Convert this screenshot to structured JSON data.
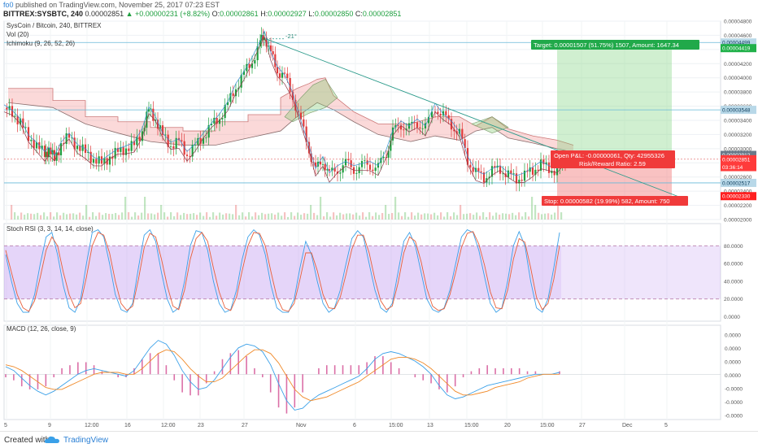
{
  "header": {
    "user": "fo0",
    "published_text": "published on TradingView.com, November 25, 2017 07:23 EST",
    "symbol": "BITTREX:SYSBTC, 240",
    "last_price": "0.00002851",
    "change": "▲ +0.00000231 (+8.82%)",
    "open_label": "O:",
    "open": "0.00002861",
    "high_label": "H:",
    "high": "0.00002927",
    "low_label": "L:",
    "low": "0.00002850",
    "close_label": "C:",
    "close": "0.00002851"
  },
  "legends": {
    "main_title": "SysCoin / Bitcoin, 240, BITTREX",
    "vol": "Vol (20)",
    "ichimoku": "Ichimoku (9, 26, 52, 26)",
    "stoch": "Stoch RSI (3, 3, 14, 14, close)",
    "macd": "MACD (12, 26, close, 9)"
  },
  "annotations": {
    "angle": "-21°",
    "target": "Target: 0.00001507 (51.75%) 1507, Amount: 1647.34",
    "open_pl": "Open P&L: -0.00000061, Qty: 42955326",
    "rr": "Risk/Reward Ratio: 2.59",
    "stop": "Stop: 0.00000582 (19.99%) 582, Amount: 750"
  },
  "price_badges": [
    {
      "label": "0.00004499",
      "value": 4.499e-05,
      "color": "#b8d8e8",
      "text_color": "#0a3a5a"
    },
    {
      "label": "0.00004419",
      "value": 4.419e-05,
      "color": "#21b14a",
      "text_color": "#ffffff"
    },
    {
      "label": "0.00003548",
      "value": 3.548e-05,
      "color": "#b8d8e8",
      "text_color": "#0a3a5a"
    },
    {
      "label": "0.00002912",
      "value": 2.912e-05,
      "color": "#6a7a8a",
      "text_color": "#ffffff"
    },
    {
      "label": "0.00002851",
      "value": 2.851e-05,
      "color": "#ff3b3b",
      "text_color": "#ffffff"
    },
    {
      "label": "03:36:14",
      "value": 2.74e-05,
      "color": "#ff3b3b",
      "text_color": "#ffffff"
    },
    {
      "label": "0.00002517",
      "value": 2.517e-05,
      "color": "#b8d8e8",
      "text_color": "#0a3a5a"
    },
    {
      "label": "0.00002330",
      "value": 2.33e-05,
      "color": "#ff2020",
      "text_color": "#ffffff"
    }
  ],
  "footer": {
    "created_with": "Created with",
    "brand": "TradingView"
  },
  "chart_data": [
    {
      "type": "candlestick",
      "panel": "price",
      "title": "SysCoin / Bitcoin, 240, BITTREX",
      "ylim": [
        2e-05,
        4.8e-05
      ],
      "y_ticks": [
        "0.00004800",
        "0.00004600",
        "0.00004400",
        "0.00004200",
        "0.00004000",
        "0.00003800",
        "0.00003600",
        "0.00003400",
        "0.00003200",
        "0.00003000",
        "0.00002800",
        "0.00002600",
        "0.00002400",
        "0.00002200",
        "0.00002000"
      ],
      "x_ticks": [
        "5",
        "9",
        "12:00",
        "16",
        "12:00",
        "23",
        "27",
        "Nov",
        "6",
        "15:00",
        "13",
        "15:00",
        "20",
        "15:00",
        "27",
        "Dec",
        "5"
      ],
      "close_path": [
        {
          "x": 0,
          "y": 3.58e-05
        },
        {
          "x": 10,
          "y": 3.5e-05
        },
        {
          "x": 20,
          "y": 3.38e-05
        },
        {
          "x": 30,
          "y": 3.15e-05
        },
        {
          "x": 40,
          "y": 3.05e-05
        },
        {
          "x": 50,
          "y": 2.92e-05
        },
        {
          "x": 55,
          "y": 2.98e-05
        },
        {
          "x": 62,
          "y": 2.86e-05
        },
        {
          "x": 70,
          "y": 3.05e-05
        },
        {
          "x": 80,
          "y": 3.18e-05
        },
        {
          "x": 90,
          "y": 3.02e-05
        },
        {
          "x": 100,
          "y": 2.96e-05
        },
        {
          "x": 110,
          "y": 2.84e-05
        },
        {
          "x": 120,
          "y": 2.8e-05
        },
        {
          "x": 130,
          "y": 2.88e-05
        },
        {
          "x": 140,
          "y": 2.96e-05
        },
        {
          "x": 150,
          "y": 3e-05
        },
        {
          "x": 160,
          "y": 3.05e-05
        },
        {
          "x": 170,
          "y": 3.25e-05
        },
        {
          "x": 178,
          "y": 3.55e-05
        },
        {
          "x": 186,
          "y": 3.42e-05
        },
        {
          "x": 195,
          "y": 3.18e-05
        },
        {
          "x": 205,
          "y": 3.05e-05
        },
        {
          "x": 215,
          "y": 3.1e-05
        },
        {
          "x": 225,
          "y": 2.92e-05
        },
        {
          "x": 235,
          "y": 3.03e-05
        },
        {
          "x": 245,
          "y": 3.18e-05
        },
        {
          "x": 255,
          "y": 3.32e-05
        },
        {
          "x": 265,
          "y": 3.45e-05
        },
        {
          "x": 275,
          "y": 3.62e-05
        },
        {
          "x": 285,
          "y": 3.88e-05
        },
        {
          "x": 295,
          "y": 4.05e-05
        },
        {
          "x": 305,
          "y": 4.25e-05
        },
        {
          "x": 315,
          "y": 4.48e-05
        },
        {
          "x": 320,
          "y": 4.62e-05
        },
        {
          "x": 328,
          "y": 4.32e-05
        },
        {
          "x": 336,
          "y": 4.12e-05
        },
        {
          "x": 345,
          "y": 4e-05
        },
        {
          "x": 355,
          "y": 3.75e-05
        },
        {
          "x": 365,
          "y": 3.35e-05
        },
        {
          "x": 375,
          "y": 3e-05
        },
        {
          "x": 383,
          "y": 2.68e-05
        },
        {
          "x": 392,
          "y": 2.85e-05
        },
        {
          "x": 400,
          "y": 2.62e-05
        },
        {
          "x": 410,
          "y": 2.72e-05
        },
        {
          "x": 420,
          "y": 2.78e-05
        },
        {
          "x": 430,
          "y": 2.72e-05
        },
        {
          "x": 440,
          "y": 2.75e-05
        },
        {
          "x": 450,
          "y": 2.78e-05
        },
        {
          "x": 460,
          "y": 2.72e-05
        },
        {
          "x": 470,
          "y": 2.95e-05
        },
        {
          "x": 478,
          "y": 3.22e-05
        },
        {
          "x": 488,
          "y": 3.35e-05
        },
        {
          "x": 498,
          "y": 3.28e-05
        },
        {
          "x": 508,
          "y": 3.38e-05
        },
        {
          "x": 518,
          "y": 3.28e-05
        },
        {
          "x": 530,
          "y": 3.6e-05
        },
        {
          "x": 540,
          "y": 3.45e-05
        },
        {
          "x": 550,
          "y": 3.35e-05
        },
        {
          "x": 560,
          "y": 3.2e-05
        },
        {
          "x": 570,
          "y": 2.85e-05
        },
        {
          "x": 580,
          "y": 2.65e-05
        },
        {
          "x": 590,
          "y": 2.6e-05
        },
        {
          "x": 600,
          "y": 2.68e-05
        },
        {
          "x": 610,
          "y": 2.72e-05
        },
        {
          "x": 620,
          "y": 2.62e-05
        },
        {
          "x": 630,
          "y": 2.58e-05
        },
        {
          "x": 640,
          "y": 2.62e-05
        },
        {
          "x": 650,
          "y": 2.7e-05
        },
        {
          "x": 660,
          "y": 2.78e-05
        },
        {
          "x": 670,
          "y": 2.72e-05
        },
        {
          "x": 680,
          "y": 2.68e-05
        },
        {
          "x": 690,
          "y": 2.85e-05
        }
      ],
      "levels": {
        "entry": 2.851e-05,
        "target": 4.419e-05,
        "stop": 2.33e-05,
        "h_lines": [
          4.499e-05,
          3.548e-05,
          2.517e-05
        ]
      },
      "trendline": [
        {
          "x": 322,
          "y": 4.55e-05
        },
        {
          "x": 830,
          "y": 2.32e-05
        }
      ],
      "cloud_top": [
        {
          "x": 5,
          "y": 3.85e-05
        },
        {
          "x": 60,
          "y": 3.85e-05
        },
        {
          "x": 60,
          "y": 3.68e-05
        },
        {
          "x": 100,
          "y": 3.68e-05
        },
        {
          "x": 100,
          "y": 3.45e-05
        },
        {
          "x": 140,
          "y": 3.45e-05
        },
        {
          "x": 140,
          "y": 3.38e-05
        },
        {
          "x": 180,
          "y": 3.38e-05
        },
        {
          "x": 180,
          "y": 3.3e-05
        },
        {
          "x": 220,
          "y": 3.3e-05
        },
        {
          "x": 220,
          "y": 3.25e-05
        },
        {
          "x": 260,
          "y": 3.25e-05
        },
        {
          "x": 260,
          "y": 3.38e-05
        },
        {
          "x": 300,
          "y": 3.38e-05
        },
        {
          "x": 300,
          "y": 3.48e-05
        },
        {
          "x": 340,
          "y": 3.48e-05
        },
        {
          "x": 340,
          "y": 3.72e-05
        },
        {
          "x": 360,
          "y": 3.85e-05
        },
        {
          "x": 375,
          "y": 3.92e-05
        },
        {
          "x": 385,
          "y": 3.98e-05
        },
        {
          "x": 395,
          "y": 4e-05
        },
        {
          "x": 405,
          "y": 3.75e-05
        },
        {
          "x": 430,
          "y": 3.52e-05
        },
        {
          "x": 460,
          "y": 3.35e-05
        },
        {
          "x": 500,
          "y": 3.35e-05
        },
        {
          "x": 530,
          "y": 3.45e-05
        },
        {
          "x": 560,
          "y": 3.45e-05
        },
        {
          "x": 580,
          "y": 3.32e-05
        },
        {
          "x": 600,
          "y": 3.45e-05
        },
        {
          "x": 620,
          "y": 3.28e-05
        },
        {
          "x": 650,
          "y": 3.18e-05
        },
        {
          "x": 680,
          "y": 3.12e-05
        },
        {
          "x": 700,
          "y": 3.05e-05
        }
      ],
      "cloud_bottom": [
        {
          "x": 5,
          "y": 3.65e-05
        },
        {
          "x": 60,
          "y": 3.58e-05
        },
        {
          "x": 100,
          "y": 3.35e-05
        },
        {
          "x": 140,
          "y": 3.22e-05
        },
        {
          "x": 180,
          "y": 3.1e-05
        },
        {
          "x": 220,
          "y": 3.05e-05
        },
        {
          "x": 260,
          "y": 3.05e-05
        },
        {
          "x": 300,
          "y": 3.15e-05
        },
        {
          "x": 340,
          "y": 3.25e-05
        },
        {
          "x": 360,
          "y": 3.45e-05
        },
        {
          "x": 385,
          "y": 3.65e-05
        },
        {
          "x": 405,
          "y": 3.55e-05
        },
        {
          "x": 430,
          "y": 3.38e-05
        },
        {
          "x": 460,
          "y": 3.2e-05
        },
        {
          "x": 500,
          "y": 3.1e-05
        },
        {
          "x": 530,
          "y": 3.18e-05
        },
        {
          "x": 560,
          "y": 3.12e-05
        },
        {
          "x": 580,
          "y": 3.25e-05
        },
        {
          "x": 600,
          "y": 3.3e-05
        },
        {
          "x": 620,
          "y": 3.15e-05
        },
        {
          "x": 650,
          "y": 3.08e-05
        },
        {
          "x": 680,
          "y": 3e-05
        },
        {
          "x": 700,
          "y": 2.95e-05
        }
      ]
    },
    {
      "type": "line",
      "panel": "stoch_rsi",
      "title": "Stoch RSI (3, 3, 14, 14, close)",
      "ylim": [
        -5,
        105
      ],
      "y_ticks": [
        "80.0000",
        "60.0000",
        "40.0000",
        "20.0000",
        "0.0000"
      ],
      "bands": [
        20,
        80
      ],
      "series": [
        {
          "name": "K",
          "color": "#3aa0e8",
          "values": [
            70,
            40,
            15,
            5,
            5,
            25,
            60,
            90,
            95,
            70,
            35,
            10,
            5,
            20,
            60,
            95,
            98,
            90,
            60,
            25,
            8,
            5,
            15,
            55,
            92,
            98,
            85,
            50,
            20,
            5,
            10,
            40,
            80,
            97,
            95,
            75,
            40,
            15,
            5,
            8,
            30,
            65,
            90,
            98,
            92,
            70,
            35,
            10,
            5,
            5,
            20,
            55,
            85,
            70,
            40,
            15,
            5,
            10,
            30,
            60,
            88,
            97,
            90,
            60,
            30,
            10,
            5,
            15,
            50,
            85,
            95,
            80,
            50,
            20,
            8,
            5,
            10,
            30,
            60,
            90,
            98,
            95,
            75,
            45,
            15,
            5,
            10,
            40,
            80,
            96,
            80,
            40,
            10,
            5,
            20,
            55,
            95
          ]
        },
        {
          "name": "D",
          "color": "#e8603a",
          "values": [
            75,
            50,
            25,
            10,
            6,
            18,
            45,
            75,
            90,
            80,
            50,
            25,
            10,
            15,
            45,
            80,
            95,
            92,
            72,
            40,
            15,
            7,
            12,
            42,
            78,
            94,
            90,
            65,
            35,
            12,
            8,
            30,
            65,
            88,
            95,
            85,
            55,
            28,
            10,
            7,
            22,
            52,
            80,
            95,
            94,
            80,
            50,
            22,
            8,
            6,
            15,
            42,
            72,
            72,
            52,
            25,
            10,
            9,
            22,
            48,
            76,
            92,
            92,
            72,
            42,
            18,
            8,
            12,
            38,
            72,
            90,
            85,
            62,
            32,
            12,
            7,
            9,
            25,
            50,
            78,
            94,
            96,
            82,
            58,
            28,
            10,
            9,
            30,
            65,
            88,
            84,
            55,
            22,
            8,
            15,
            42,
            80
          ]
        }
      ]
    },
    {
      "type": "line",
      "panel": "macd",
      "title": "MACD (12, 26, close, 9)",
      "ylim": [
        -2.4e-06,
        2.6e-06
      ],
      "y_ticks": [
        "0.0000",
        "0.0000",
        "0.0000",
        "0.0000",
        "-0.0000",
        "-0.0000",
        "-0.0000"
      ],
      "series": [
        {
          "name": "MACD",
          "color": "#3aa0e8",
          "values": [
            0.4,
            0.2,
            -0.2,
            -0.6,
            -0.9,
            -1.1,
            -0.9,
            -0.6,
            -0.3,
            0.0,
            0.2,
            0.3,
            0.2,
            0.1,
            0.0,
            -0.1,
            0.2,
            0.8,
            1.4,
            1.8,
            1.6,
            1.0,
            0.2,
            -0.4,
            -0.8,
            -0.7,
            -0.3,
            0.3,
            0.9,
            1.4,
            1.6,
            1.5,
            1.2,
            0.5,
            -0.5,
            -1.4,
            -1.9,
            -1.8,
            -1.4,
            -1.1,
            -0.9,
            -0.7,
            -0.5,
            -0.3,
            -0.1,
            0.3,
            0.8,
            1.1,
            1.2,
            1.1,
            0.9,
            0.7,
            0.4,
            0.0,
            -0.6,
            -1.1,
            -1.3,
            -1.2,
            -1.0,
            -0.8,
            -0.6,
            -0.5,
            -0.4,
            -0.3,
            -0.2,
            -0.1,
            0.0,
            0.0,
            0.0,
            0.1
          ]
        },
        {
          "name": "Signal",
          "color": "#f08a2a",
          "values": [
            0.5,
            0.4,
            0.2,
            -0.1,
            -0.4,
            -0.7,
            -0.8,
            -0.8,
            -0.6,
            -0.4,
            -0.2,
            0.0,
            0.1,
            0.1,
            0.1,
            0.0,
            0.0,
            0.3,
            0.7,
            1.1,
            1.3,
            1.2,
            0.8,
            0.3,
            -0.1,
            -0.4,
            -0.4,
            -0.2,
            0.2,
            0.6,
            1.0,
            1.3,
            1.3,
            1.1,
            0.6,
            -0.1,
            -0.8,
            -1.2,
            -1.4,
            -1.3,
            -1.2,
            -1.0,
            -0.8,
            -0.6,
            -0.4,
            -0.1,
            0.2,
            0.5,
            0.8,
            0.9,
            0.9,
            0.8,
            0.6,
            0.3,
            -0.1,
            -0.5,
            -0.9,
            -1.1,
            -1.1,
            -1.0,
            -0.9,
            -0.7,
            -0.6,
            -0.5,
            -0.4,
            -0.2,
            -0.1,
            0.0,
            0.0,
            0.0
          ]
        }
      ]
    }
  ]
}
